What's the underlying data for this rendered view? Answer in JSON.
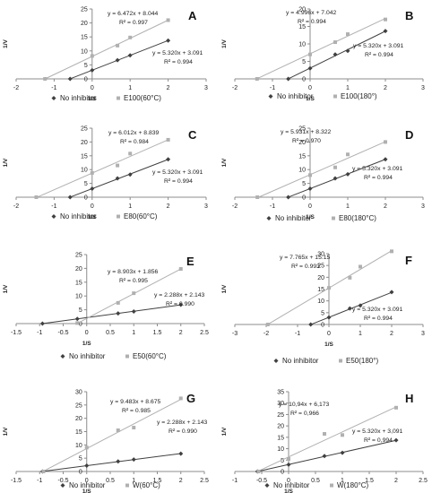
{
  "chart_data": [
    {
      "type": "scatter",
      "letter": "A",
      "xlabel": "1/S",
      "ylabel": "1/V",
      "xlim": [
        -2,
        3
      ],
      "ylim": [
        0,
        25
      ],
      "xticks": [
        "-2",
        "-1",
        "0",
        "1",
        "2",
        "3"
      ],
      "yticks": [
        "0",
        "5",
        "10",
        "15",
        "20",
        "25"
      ],
      "series": [
        {
          "name": "No inhibitor",
          "marker": "diamond",
          "color": "#404040",
          "x": [
            -0.58,
            0,
            0.667,
            1,
            2
          ],
          "y": [
            0,
            3.09,
            6.7,
            8.4,
            13.7
          ],
          "equation": "y = 5.320x + 3.091",
          "r2": "R² = 0.994"
        },
        {
          "name": "E100(60°C)",
          "marker": "square",
          "color": "#b0b0b0",
          "x": [
            -1.24,
            0,
            0.667,
            1,
            2
          ],
          "y": [
            0,
            8.2,
            11.9,
            14.8,
            21.0
          ],
          "equation": "y = 6.472x + 8.044",
          "r2": "R² = 0.997"
        }
      ]
    },
    {
      "type": "scatter",
      "letter": "B",
      "xlabel": "1/S",
      "ylabel": "1/V",
      "xlim": [
        -2,
        3
      ],
      "ylim": [
        0,
        20
      ],
      "xticks": [
        "-2",
        "-1",
        "0",
        "1",
        "2",
        "3"
      ],
      "yticks": [
        "0",
        "5",
        "10",
        "15",
        "20"
      ],
      "series": [
        {
          "name": "No inhibitor",
          "marker": "diamond",
          "color": "#404040",
          "x": [
            -0.58,
            0,
            0.667,
            1,
            2
          ],
          "y": [
            0,
            3.0,
            7.0,
            8.0,
            13.7
          ],
          "equation": "y = 5.320x + 3.091",
          "r2": "R² = 0.994"
        },
        {
          "name": "E100(180°)",
          "marker": "square",
          "color": "#b0b0b0",
          "x": [
            -1.41,
            0,
            0.667,
            1,
            2
          ],
          "y": [
            0,
            7.0,
            10.5,
            12.8,
            17.0
          ],
          "equation": "y = 4.996x + 7.042",
          "r2": "R² = 0.994"
        }
      ]
    },
    {
      "type": "scatter",
      "letter": "C",
      "xlabel": "1/S",
      "ylabel": "1/V",
      "xlim": [
        -2,
        3
      ],
      "ylim": [
        0,
        25
      ],
      "xticks": [
        "-2",
        "-1",
        "0",
        "1",
        "2",
        "3"
      ],
      "yticks": [
        "0",
        "5",
        "10",
        "15",
        "20",
        "25"
      ],
      "series": [
        {
          "name": "No inhibitor",
          "marker": "diamond",
          "color": "#404040",
          "x": [
            -0.58,
            0,
            0.667,
            1,
            2
          ],
          "y": [
            0,
            3.09,
            6.8,
            8.2,
            13.7
          ],
          "equation": "y = 5.320x + 3.091",
          "r2": "R² = 0.994"
        },
        {
          "name": "E80(60°C)",
          "marker": "square",
          "color": "#b0b0b0",
          "x": [
            -1.47,
            0,
            0.667,
            1,
            2
          ],
          "y": [
            0,
            8.8,
            11.5,
            15.8,
            20.8
          ],
          "equation": "y = 6.012x + 8.839",
          "r2": "R² = 0.984"
        }
      ]
    },
    {
      "type": "scatter",
      "letter": "D",
      "xlabel": "1/S",
      "ylabel": "1/V",
      "xlim": [
        -2,
        3
      ],
      "ylim": [
        0,
        25
      ],
      "xticks": [
        "-2",
        "-1",
        "0",
        "1",
        "2",
        "3"
      ],
      "yticks": [
        "0",
        "5",
        "10",
        "15",
        "20",
        "25"
      ],
      "series": [
        {
          "name": "No inhibitor",
          "marker": "diamond",
          "color": "#404040",
          "x": [
            -0.58,
            0,
            0.667,
            1,
            2
          ],
          "y": [
            0,
            3.09,
            6.8,
            8.3,
            13.7
          ],
          "equation": "y = 5.320x + 3.091",
          "r2": "R² = 0.994"
        },
        {
          "name": "E80(180°C)",
          "marker": "square",
          "color": "#b0b0b0",
          "x": [
            -1.4,
            0,
            0.667,
            1,
            2
          ],
          "y": [
            0,
            8.0,
            10.8,
            15.5,
            20.0
          ],
          "equation": "y = 5.931x + 8.322",
          "r2": "R² = 0.970"
        }
      ]
    },
    {
      "type": "scatter",
      "letter": "E",
      "xlabel": "1/S",
      "ylabel": "1/V",
      "xlim": [
        -1.5,
        2.5
      ],
      "ylim": [
        0,
        25
      ],
      "xticks": [
        "-1.5",
        "-1",
        "-0.5",
        "0",
        "0.5",
        "1",
        "1.5",
        "2",
        "2.5"
      ],
      "yticks": [
        "0",
        "5",
        "10",
        "15",
        "20",
        "25"
      ],
      "series": [
        {
          "name": "No inhibitor",
          "marker": "diamond",
          "color": "#404040",
          "x": [
            -0.94,
            -0.2,
            0.667,
            1,
            2
          ],
          "y": [
            0,
            1.7,
            3.7,
            4.4,
            6.8
          ],
          "equation": "y = 2.288x + 2.143",
          "r2": "R² = 0.990"
        },
        {
          "name": "E50(60°C)",
          "marker": "square",
          "color": "#b0b0b0",
          "x": [
            -0.2,
            0.667,
            1,
            2
          ],
          "y": [
            0.2,
            7.5,
            11.0,
            19.8
          ],
          "equation": "y = 8.903x + 1.856",
          "r2": "R² = 0.995"
        }
      ]
    },
    {
      "type": "scatter",
      "letter": "F",
      "xlabel": "1/S",
      "ylabel": "1/V",
      "xlim": [
        -3,
        3
      ],
      "ylim": [
        0,
        30
      ],
      "xticks": [
        "-3",
        "-2",
        "-1",
        "0",
        "1",
        "2",
        "3"
      ],
      "yticks": [
        "0",
        "5",
        "10",
        "15",
        "20",
        "25",
        "30"
      ],
      "series": [
        {
          "name": "No inhibitor",
          "marker": "diamond",
          "color": "#404040",
          "x": [
            -0.58,
            0,
            0.667,
            1,
            2
          ],
          "y": [
            0,
            3.0,
            6.8,
            8.0,
            13.7
          ],
          "equation": "y = 5.320x + 3.091",
          "r2": "R² = 0.994"
        },
        {
          "name": "E50(180°)",
          "marker": "square",
          "color": "#b0b0b0",
          "x": [
            -1.95,
            0,
            0.667,
            1,
            2
          ],
          "y": [
            0,
            15.5,
            19.8,
            24.5,
            31.0
          ],
          "equation": "y = 7.765x + 15.15",
          "r2": "R² = 0.993"
        }
      ]
    },
    {
      "type": "scatter",
      "letter": "G",
      "xlabel": "1/S",
      "ylabel": "1/V",
      "xlim": [
        -1.5,
        2.5
      ],
      "ylim": [
        0,
        30
      ],
      "xticks": [
        "-1.5",
        "-1",
        "-0.5",
        "0",
        "0.5",
        "1",
        "1.5",
        "2",
        "2.5"
      ],
      "yticks": [
        "0",
        "5",
        "10",
        "15",
        "20",
        "25",
        "30"
      ],
      "series": [
        {
          "name": "No inhibitor",
          "marker": "diamond",
          "color": "#404040",
          "x": [
            -0.94,
            0,
            0.667,
            1,
            2
          ],
          "y": [
            0,
            2.2,
            3.8,
            4.5,
            6.7
          ],
          "equation": "y = 2.288x + 2.143",
          "r2": "R² = 0.990"
        },
        {
          "name": "W(60°C)",
          "marker": "square",
          "color": "#b0b0b0",
          "x": [
            -0.92,
            0,
            0.667,
            1,
            2
          ],
          "y": [
            0,
            9.0,
            15.5,
            16.5,
            27.5
          ],
          "equation": "y = 9.483x + 8.675",
          "r2": "R² = 0.985"
        }
      ]
    },
    {
      "type": "scatter",
      "letter": "H",
      "xlabel": "1/S",
      "ylabel": "1/V",
      "xlim": [
        -1,
        2.5
      ],
      "ylim": [
        0,
        35
      ],
      "xticks": [
        "-1",
        "-0.5",
        "0",
        "0.5",
        "1",
        "1.5",
        "2",
        "2.5"
      ],
      "yticks": [
        "0",
        "5",
        "10",
        "15",
        "20",
        "25",
        "30",
        "35"
      ],
      "series": [
        {
          "name": "No inhibitor",
          "marker": "diamond",
          "color": "#404040",
          "x": [
            -0.58,
            0,
            0.667,
            1,
            2
          ],
          "y": [
            0,
            3.0,
            6.8,
            8.2,
            13.7
          ],
          "equation": "y = 5.320x + 3,091",
          "r2": "R² = 0,994"
        },
        {
          "name": "W(180°C)",
          "marker": "square",
          "color": "#b0b0b0",
          "x": [
            -0.56,
            0,
            0.667,
            1,
            2
          ],
          "y": [
            0,
            5.5,
            16.5,
            16.0,
            28.0
          ],
          "equation": "y = 10,94x + 6,173",
          "r2": "R² = 0,966"
        }
      ]
    }
  ]
}
